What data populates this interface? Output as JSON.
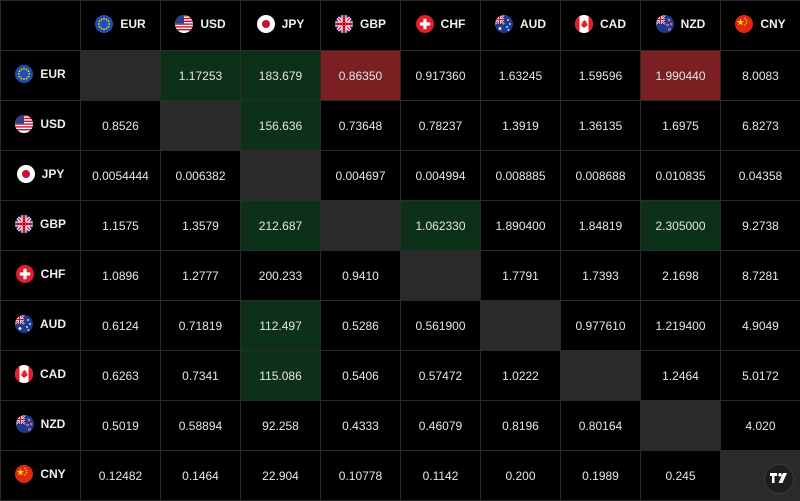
{
  "currencies": [
    {
      "code": "EUR",
      "flag": "eu-flag-icon"
    },
    {
      "code": "USD",
      "flag": "us-flag-icon"
    },
    {
      "code": "JPY",
      "flag": "jp-flag-icon"
    },
    {
      "code": "GBP",
      "flag": "gb-flag-icon"
    },
    {
      "code": "CHF",
      "flag": "ch-flag-icon"
    },
    {
      "code": "AUD",
      "flag": "au-flag-icon"
    },
    {
      "code": "CAD",
      "flag": "ca-flag-icon"
    },
    {
      "code": "NZD",
      "flag": "nz-flag-icon"
    },
    {
      "code": "CNY",
      "flag": "cn-flag-icon"
    }
  ],
  "rows": [
    [
      "",
      "1.17253",
      "183.679",
      "0.86350",
      "0.917360",
      "1.63245",
      "1.59596",
      "1.990440",
      "8.0083"
    ],
    [
      "0.8526",
      "",
      "156.636",
      "0.73648",
      "0.78237",
      "1.3919",
      "1.36135",
      "1.6975",
      "6.8273"
    ],
    [
      "0.0054444",
      "0.006382",
      "",
      "0.004697",
      "0.004994",
      "0.008885",
      "0.008688",
      "0.010835",
      "0.04358"
    ],
    [
      "1.1575",
      "1.3579",
      "212.687",
      "",
      "1.062330",
      "1.890400",
      "1.84819",
      "2.305000",
      "9.2738"
    ],
    [
      "1.0896",
      "1.2777",
      "200.233",
      "0.9410",
      "",
      "1.7791",
      "1.7393",
      "2.1698",
      "8.7281"
    ],
    [
      "0.6124",
      "0.71819",
      "112.497",
      "0.5286",
      "0.561900",
      "",
      "0.977610",
      "1.219400",
      "4.9049"
    ],
    [
      "0.6263",
      "0.7341",
      "115.086",
      "0.5406",
      "0.57472",
      "1.0222",
      "",
      "1.2464",
      "5.0172"
    ],
    [
      "0.5019",
      "0.58894",
      "92.258",
      "0.4333",
      "0.46079",
      "0.8196",
      "0.80164",
      "",
      "4.020"
    ],
    [
      "0.12482",
      "0.1464",
      "22.904",
      "0.10778",
      "0.1142",
      "0.200",
      "0.1989",
      "0.245",
      ""
    ]
  ],
  "cell_states": [
    [
      "diag",
      "pos",
      "pos",
      "neg",
      "none",
      "none",
      "none",
      "neg",
      "none"
    ],
    [
      "none",
      "diag",
      "pos",
      "none",
      "none",
      "none",
      "none",
      "none",
      "none"
    ],
    [
      "none",
      "none",
      "diag",
      "none",
      "none",
      "none",
      "none",
      "none",
      "none"
    ],
    [
      "none",
      "none",
      "pos",
      "diag",
      "pos",
      "none",
      "none",
      "pos",
      "none"
    ],
    [
      "none",
      "none",
      "none",
      "none",
      "diag",
      "none",
      "none",
      "none",
      "none"
    ],
    [
      "none",
      "none",
      "pos",
      "none",
      "none",
      "diag",
      "none",
      "none",
      "none"
    ],
    [
      "none",
      "none",
      "pos",
      "none",
      "none",
      "none",
      "diag",
      "none",
      "none"
    ],
    [
      "none",
      "none",
      "none",
      "none",
      "none",
      "none",
      "none",
      "diag",
      "none"
    ],
    [
      "none",
      "none",
      "none",
      "none",
      "none",
      "none",
      "none",
      "none",
      "diag"
    ]
  ],
  "colors": {
    "positive": "#0c3018",
    "negative": "#7a1f22",
    "diagonal": "#2a2a2a"
  },
  "logo_icon": "tradingview-logo-icon"
}
